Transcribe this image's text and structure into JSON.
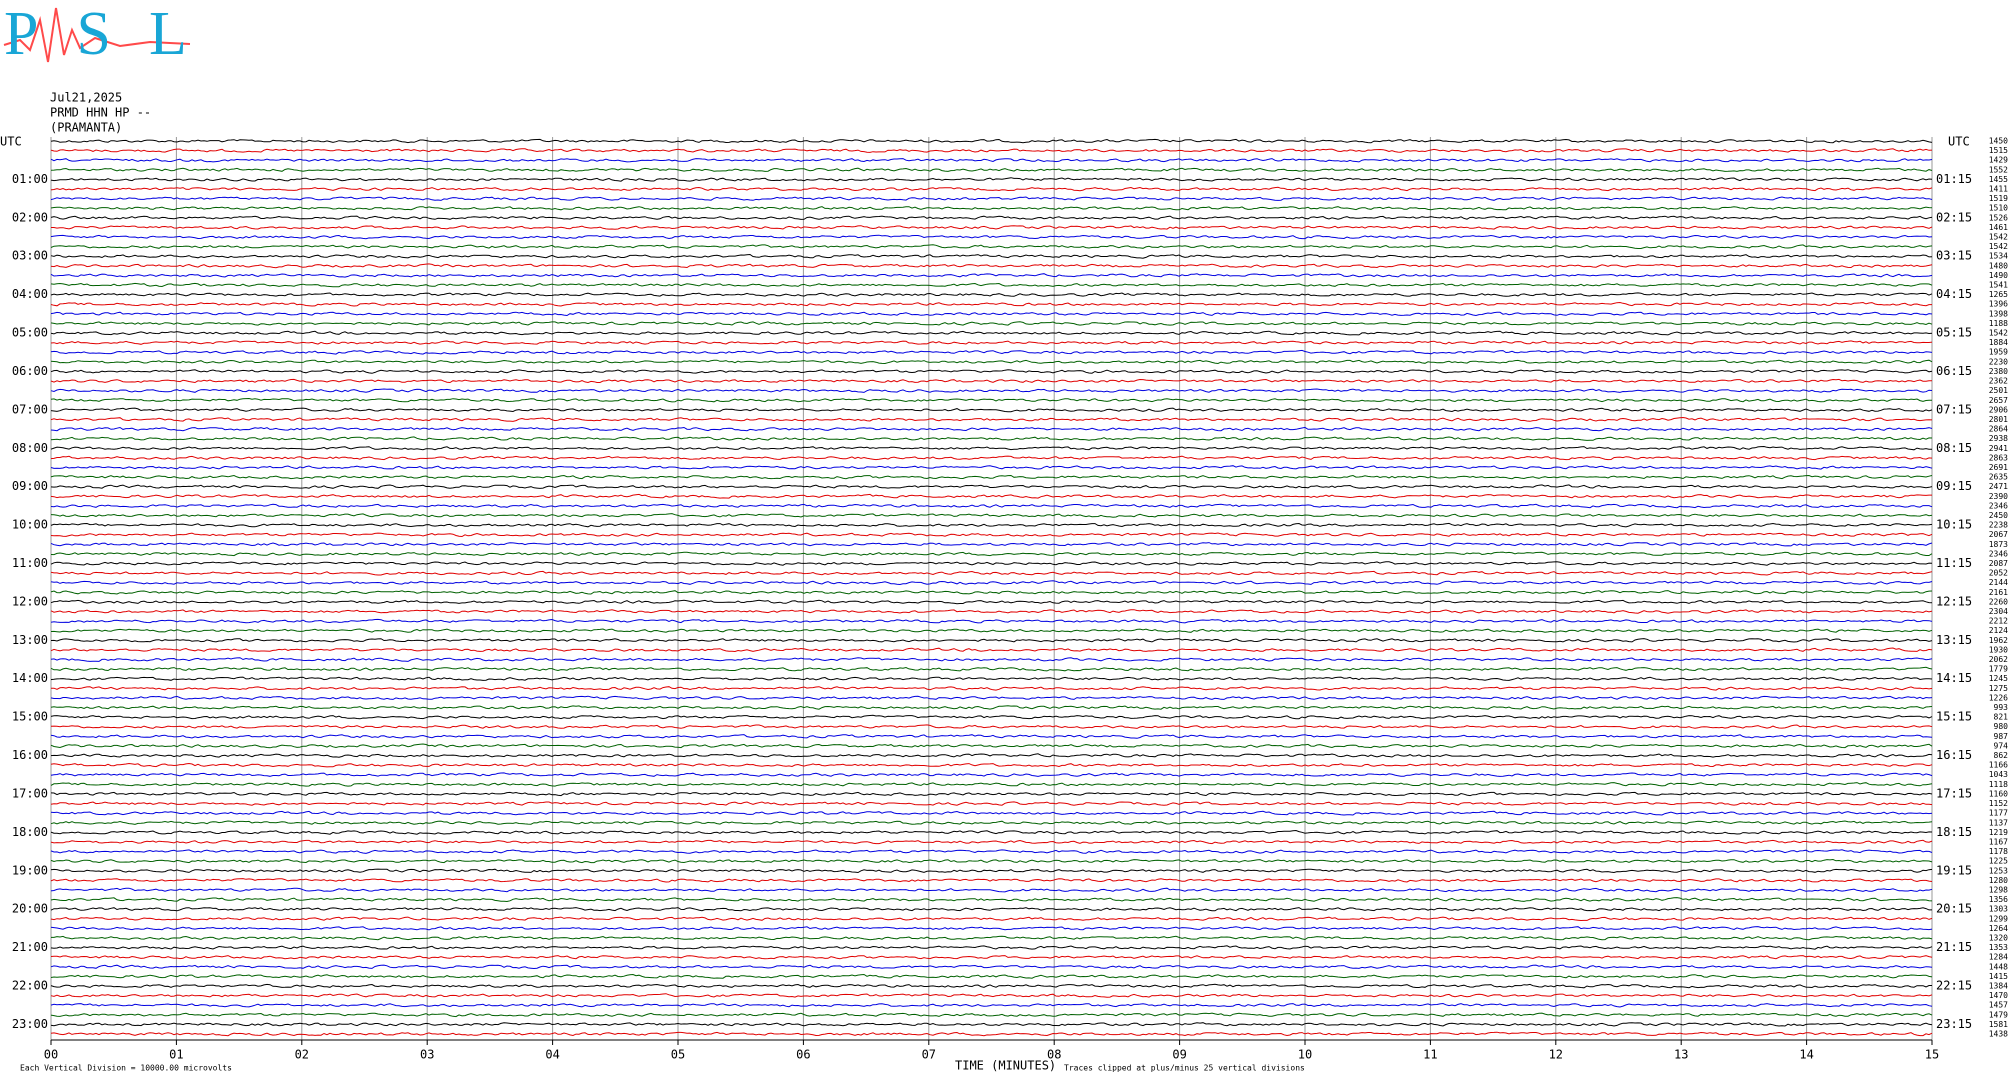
{
  "chart_data": {
    "type": "helicorder",
    "logo": "PSL",
    "date": "Jul21,2025",
    "station": "PRMD HHN HP --",
    "site": "(PRAMANTA)",
    "left_axis_label": "UTC",
    "right_axis_label": "UTC",
    "xlabel": "TIME (MINUTES)",
    "scale_note": "Each Vertical Division = 10000.00 microvolts",
    "clip_note": "Traces clipped at plus/minus 25 vertical divisions",
    "xlim": [
      0,
      15
    ],
    "xticks": [
      {
        "value": 0,
        "label": "00"
      },
      {
        "value": 1,
        "label": "01"
      },
      {
        "value": 2,
        "label": "02"
      },
      {
        "value": 3,
        "label": "03"
      },
      {
        "value": 4,
        "label": "04"
      },
      {
        "value": 5,
        "label": "05"
      },
      {
        "value": 6,
        "label": "06"
      },
      {
        "value": 7,
        "label": "07"
      },
      {
        "value": 8,
        "label": "08"
      },
      {
        "value": 9,
        "label": "09"
      },
      {
        "value": 10,
        "label": "10"
      },
      {
        "value": 11,
        "label": "11"
      },
      {
        "value": 12,
        "label": "12"
      },
      {
        "value": 13,
        "label": "13"
      },
      {
        "value": 14,
        "label": "14"
      },
      {
        "value": 15,
        "label": "15"
      }
    ],
    "hour_labels": [
      "01:00",
      "02:00",
      "03:00",
      "04:00",
      "05:00",
      "06:00",
      "07:00",
      "08:00",
      "09:00",
      "10:00",
      "11:00",
      "12:00",
      "13:00",
      "14:00",
      "15:00",
      "16:00",
      "17:00",
      "18:00",
      "19:00",
      "20:00",
      "21:00",
      "22:00",
      "23:00"
    ],
    "end_labels": [
      "01:15",
      "02:15",
      "03:15",
      "04:15",
      "05:15",
      "06:15",
      "07:15",
      "08:15",
      "09:15",
      "10:15",
      "11:15",
      "12:15",
      "13:15",
      "14:15",
      "15:15",
      "16:15",
      "17:15",
      "18:15",
      "19:15",
      "20:15",
      "21:15",
      "22:15",
      "23:15"
    ],
    "scale_values": [
      1450,
      1515,
      1429,
      1552,
      1455,
      1411,
      1519,
      1510,
      1526,
      1461,
      1542,
      1542,
      1534,
      1480,
      1490,
      1541,
      1265,
      1396,
      1398,
      1188,
      1542,
      1884,
      1959,
      2230,
      2380,
      2362,
      2501,
      2657,
      2906,
      2801,
      2864,
      2938,
      2941,
      2863,
      2691,
      2635,
      2471,
      2390,
      2346,
      2450,
      2238,
      2067,
      1873,
      2346,
      2087,
      2052,
      2144,
      2161,
      2260,
      2304,
      2212,
      2124,
      1962,
      1930,
      2062,
      1779,
      1245,
      1275,
      1226,
      993,
      821,
      980,
      987,
      974,
      862,
      1166,
      1043,
      1118,
      1160,
      1152,
      1177,
      1137,
      1219,
      1167,
      1178,
      1225,
      1253,
      1280,
      1298,
      1356,
      1303,
      1299,
      1264,
      1320,
      1353,
      1284,
      1448,
      1415,
      1384,
      1470,
      1457,
      1479,
      1581,
      1438
    ],
    "colors": [
      "#000000",
      "#e00000",
      "#0000e0",
      "#006000"
    ]
  }
}
